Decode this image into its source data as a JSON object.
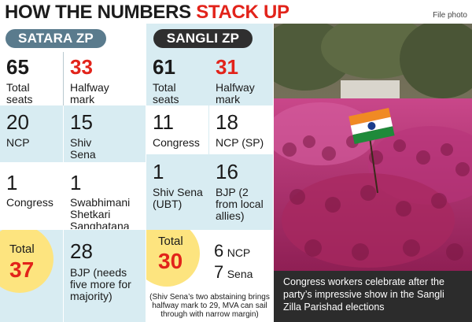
{
  "header": {
    "title_part1": "HOW THE NUMBERS ",
    "title_part2": "STACK UP",
    "credit": "File photo"
  },
  "satara": {
    "title": "SATARA ZP",
    "total_seats": {
      "value": "65",
      "label_1": "Total",
      "label_2": "seats"
    },
    "halfway": {
      "value": "33",
      "label_1": "Halfway",
      "label_2": "mark"
    },
    "ncp": {
      "value": "20",
      "label": "NCP"
    },
    "shiv_sena": {
      "value": "15",
      "label_1": "Shiv",
      "label_2": "Sena"
    },
    "congress": {
      "value": "1",
      "label": "Congress"
    },
    "sss": {
      "value": "1",
      "label_1": "Swabhimani",
      "label_2": "Shetkari",
      "label_3": "Sanghatana"
    },
    "total": {
      "label": "Total",
      "value": "37"
    },
    "bjp": {
      "value": "28",
      "label_1": "BJP (needs",
      "label_2": "five more for",
      "label_3": "majority)"
    }
  },
  "sangli": {
    "title": "SANGLI ZP",
    "total_seats": {
      "value": "61",
      "label_1": "Total",
      "label_2": "seats"
    },
    "halfway": {
      "value": "31",
      "label_1": "Halfway",
      "label_2": "mark"
    },
    "congress": {
      "value": "11",
      "label": "Congress"
    },
    "ncp_sp": {
      "value": "18",
      "label": "NCP (SP)"
    },
    "shiv_sena_ubt": {
      "value": "1",
      "label_1": "Shiv Sena",
      "label_2": "(UBT)"
    },
    "bjp": {
      "value": "16",
      "label_1": "BJP (2",
      "label_2": "from local",
      "label_3": "allies)"
    },
    "total": {
      "label": "Total",
      "value": "30"
    },
    "ncp": {
      "value": "6",
      "label": "NCP"
    },
    "sena": {
      "value": "7",
      "label": "Sena"
    },
    "note_1": "(Shiv Sena’s two abstaining brings",
    "note_2": "halfway mark to 29, MVA can sail",
    "note_3": "through with narrow margin)"
  },
  "photo": {
    "caption_1": "Congress workers celebrate after the",
    "caption_2": "party’s impressive show in the Sangli",
    "caption_3": "Zilla Parishad elections"
  }
}
